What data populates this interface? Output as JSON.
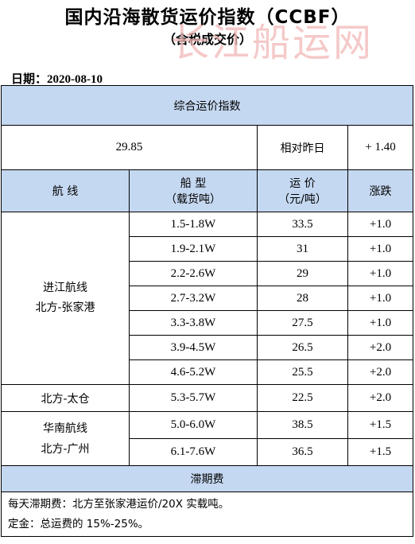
{
  "header": {
    "title": "国内沿海散货运价指数（CCBF）",
    "subtitle": "（含税成交价）",
    "watermark": "长江船运网"
  },
  "date": {
    "label": "日期：",
    "value": "2020-08-10"
  },
  "composite": {
    "section_title": "综合运价指数",
    "index_value": "29.85",
    "compare_label": "相对昨日",
    "change": "+ 1.40"
  },
  "columns": {
    "route": "航  线",
    "ship_type_line1": "船  型",
    "ship_type_line2": "（载货吨）",
    "freight_line1": "运  价",
    "freight_line2": "（元/吨）",
    "change": "涨跌"
  },
  "route_groups": [
    {
      "route_line1": "进江航线",
      "route_line2": "北方-张家港",
      "rows": [
        {
          "ship_type": "1.5-1.8W",
          "freight": "33.5",
          "change": "+1.0"
        },
        {
          "ship_type": "1.9-2.1W",
          "freight": "31",
          "change": "+1.0"
        },
        {
          "ship_type": "2.2-2.6W",
          "freight": "29",
          "change": "+1.0"
        },
        {
          "ship_type": "2.7-3.2W",
          "freight": "28",
          "change": "+1.0"
        },
        {
          "ship_type": "3.3-3.8W",
          "freight": "27.5",
          "change": "+1.0"
        },
        {
          "ship_type": "3.9-4.5W",
          "freight": "26.5",
          "change": "+2.0"
        },
        {
          "ship_type": "4.6-5.2W",
          "freight": "25.5",
          "change": "+2.0"
        }
      ]
    },
    {
      "route_line1": "北方-太仓",
      "route_line2": "",
      "rows": [
        {
          "ship_type": "5.3-5.7W",
          "freight": "22.5",
          "change": "+2.0"
        }
      ]
    },
    {
      "route_line1": "华南航线",
      "route_line2": "北方-广州",
      "rows": [
        {
          "ship_type": "5.0-6.0W",
          "freight": "38.5",
          "change": "+1.5"
        },
        {
          "ship_type": "6.1-7.6W",
          "freight": "36.5",
          "change": "+1.5"
        }
      ]
    }
  ],
  "demurrage": {
    "section_title": "滞期费",
    "note1": "每天滞期费：北方至张家港运价/20X 实载吨。",
    "note2": "定金：总运费的 15%-25%。"
  }
}
